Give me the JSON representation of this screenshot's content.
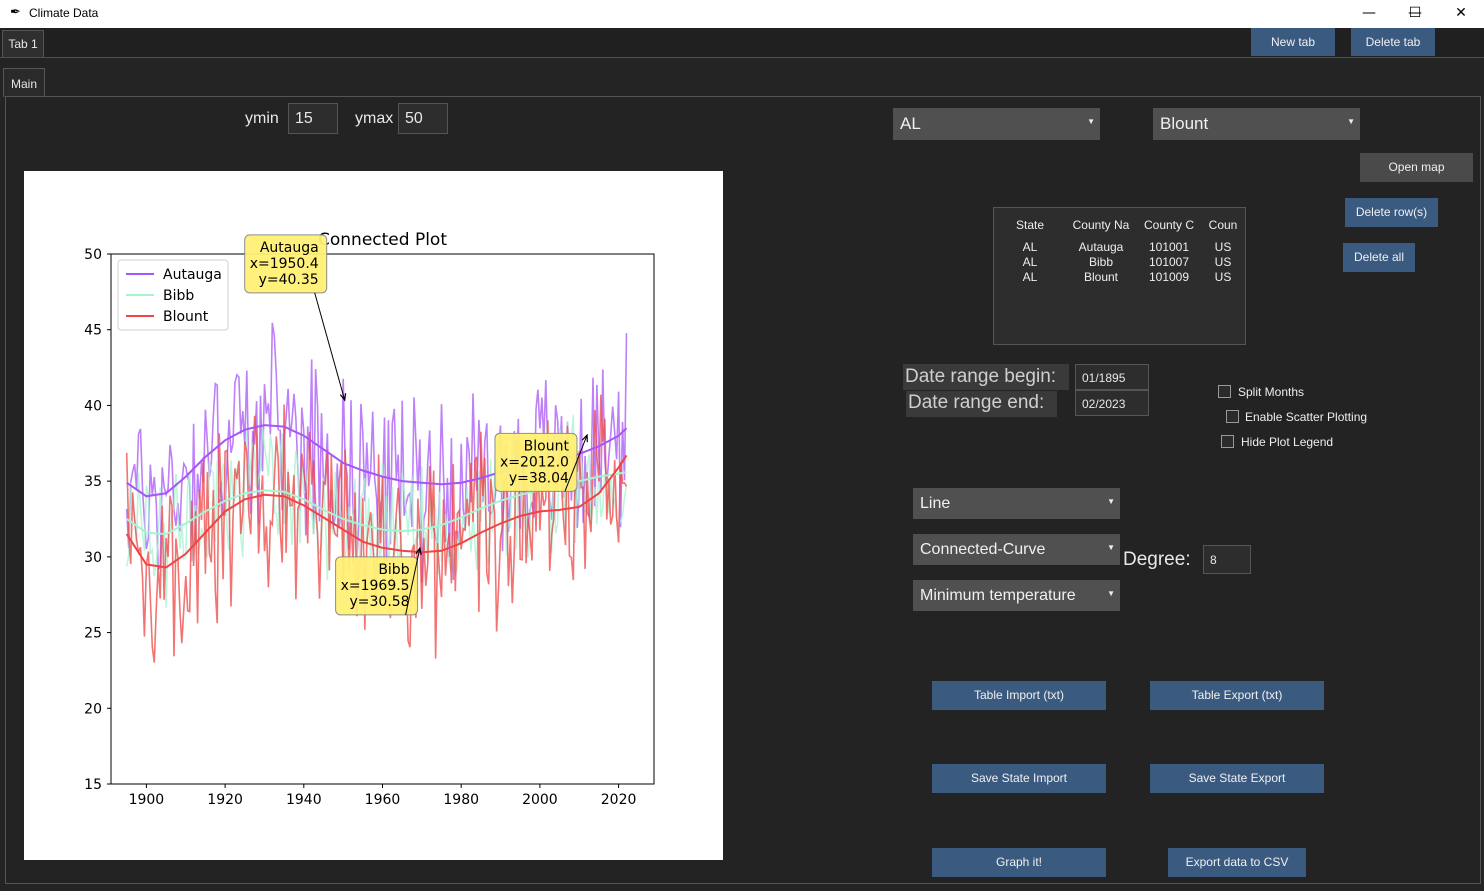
{
  "window": {
    "title": "Climate Data",
    "minimize": "—",
    "maximize": "☐",
    "close": "✕"
  },
  "tabs": {
    "outer_tab": "Tab 1",
    "new_tab": "New tab",
    "delete_tab": "Delete tab",
    "inner_tab": "Main"
  },
  "range": {
    "ymin_label": "ymin",
    "ymin_value": "15",
    "ymax_label": "ymax",
    "ymax_value": "50"
  },
  "selectors": {
    "state": "AL",
    "county": "Blount"
  },
  "buttons": {
    "open_map": "Open map",
    "delete_rows": "Delete row(s)",
    "delete_all": "Delete all",
    "table_import": "Table Import (txt)",
    "table_export": "Table Export (txt)",
    "save_state_import": "Save State Import",
    "save_state_export": "Save State Export",
    "graph": "Graph it!",
    "export_csv": "Export data to CSV"
  },
  "table": {
    "headers": [
      "State",
      "County Na",
      "County C",
      "Coun"
    ],
    "rows": [
      [
        "AL",
        "Autauga",
        "101001",
        "US"
      ],
      [
        "AL",
        "Bibb",
        "101007",
        "US"
      ],
      [
        "AL",
        "Blount",
        "101009",
        "US"
      ]
    ]
  },
  "dates": {
    "begin_label": "Date range begin:",
    "begin_value": "01/1895",
    "end_label": "Date range end:",
    "end_value": "02/2023"
  },
  "options": {
    "split_months": "Split Months",
    "scatter": "Enable Scatter Plotting",
    "hide_legend": "Hide Plot Legend"
  },
  "plot_options": {
    "plot_type": "Line",
    "curve_type": "Connected-Curve",
    "degree_label": "Degree:",
    "degree_value": "8",
    "variable": "Minimum temperature"
  },
  "colors": {
    "autauga": "#a855f7",
    "bibb": "#a7f3d0",
    "blount": "#ef4444",
    "button": "#3a5a80"
  },
  "chart_data": {
    "type": "line",
    "title": "Connected Plot",
    "xlim": [
      1891,
      2029
    ],
    "ylim": [
      15,
      50
    ],
    "xticks": [
      1900,
      1920,
      1940,
      1960,
      1980,
      2000,
      2020
    ],
    "yticks": [
      15,
      20,
      25,
      30,
      35,
      40,
      45,
      50
    ],
    "legend_position": "top-left",
    "series": [
      {
        "name": "Autauga",
        "color": "#a855f7",
        "fit": [
          [
            1895,
            34.9
          ],
          [
            1900,
            34.0
          ],
          [
            1905,
            34.2
          ],
          [
            1910,
            35.3
          ],
          [
            1915,
            36.6
          ],
          [
            1920,
            37.7
          ],
          [
            1925,
            38.4
          ],
          [
            1930,
            38.7
          ],
          [
            1935,
            38.6
          ],
          [
            1940,
            38.0
          ],
          [
            1945,
            37.1
          ],
          [
            1950,
            36.2
          ],
          [
            1955,
            35.7
          ],
          [
            1960,
            35.3
          ],
          [
            1965,
            35.0
          ],
          [
            1970,
            34.9
          ],
          [
            1975,
            34.8
          ],
          [
            1980,
            34.9
          ],
          [
            1985,
            35.2
          ],
          [
            1990,
            35.6
          ],
          [
            1995,
            36.0
          ],
          [
            2000,
            36.2
          ],
          [
            2005,
            36.4
          ],
          [
            2010,
            36.8
          ],
          [
            2015,
            37.3
          ],
          [
            2020,
            38.0
          ],
          [
            2022,
            38.5
          ]
        ]
      },
      {
        "name": "Bibb",
        "color": "#a7f3d0",
        "fit": [
          [
            1895,
            32.5
          ],
          [
            1900,
            31.6
          ],
          [
            1905,
            31.5
          ],
          [
            1910,
            32.2
          ],
          [
            1915,
            33.0
          ],
          [
            1920,
            33.7
          ],
          [
            1925,
            34.2
          ],
          [
            1930,
            34.4
          ],
          [
            1935,
            34.3
          ],
          [
            1940,
            33.8
          ],
          [
            1945,
            33.1
          ],
          [
            1950,
            32.5
          ],
          [
            1955,
            32.1
          ],
          [
            1960,
            31.8
          ],
          [
            1965,
            31.7
          ],
          [
            1970,
            31.8
          ],
          [
            1975,
            32.1
          ],
          [
            1980,
            32.6
          ],
          [
            1985,
            33.2
          ],
          [
            1990,
            33.7
          ],
          [
            1995,
            34.1
          ],
          [
            2000,
            34.4
          ],
          [
            2005,
            34.7
          ],
          [
            2010,
            35.0
          ],
          [
            2015,
            35.3
          ],
          [
            2020,
            35.5
          ],
          [
            2022,
            35.6
          ]
        ]
      },
      {
        "name": "Blount",
        "color": "#ef4444",
        "fit": [
          [
            1895,
            31.5
          ],
          [
            1900,
            29.5
          ],
          [
            1905,
            29.3
          ],
          [
            1910,
            30.2
          ],
          [
            1915,
            31.6
          ],
          [
            1920,
            33.0
          ],
          [
            1925,
            33.8
          ],
          [
            1930,
            34.1
          ],
          [
            1935,
            34.0
          ],
          [
            1940,
            33.4
          ],
          [
            1945,
            32.6
          ],
          [
            1950,
            31.8
          ],
          [
            1955,
            31.0
          ],
          [
            1960,
            30.6
          ],
          [
            1965,
            30.4
          ],
          [
            1970,
            30.3
          ],
          [
            1975,
            30.4
          ],
          [
            1980,
            30.9
          ],
          [
            1985,
            31.6
          ],
          [
            1990,
            32.2
          ],
          [
            1995,
            32.7
          ],
          [
            2000,
            33.0
          ],
          [
            2005,
            33.1
          ],
          [
            2010,
            33.3
          ],
          [
            2015,
            34.2
          ],
          [
            2020,
            35.9
          ],
          [
            2022,
            36.7
          ]
        ]
      }
    ],
    "annotations": [
      {
        "series": "Autauga",
        "x": 1950.4,
        "y": 40.35,
        "text": [
          "Autauga",
          "x=1950.4",
          "y=40.35"
        ]
      },
      {
        "series": "Bibb",
        "x": 1969.5,
        "y": 30.58,
        "text": [
          "Bibb",
          "x=1969.5",
          "y=30.58"
        ]
      },
      {
        "series": "Blount",
        "x": 2012.0,
        "y": 38.04,
        "text": [
          "Blount",
          "x=2012.0",
          "y=38.04"
        ]
      }
    ]
  }
}
